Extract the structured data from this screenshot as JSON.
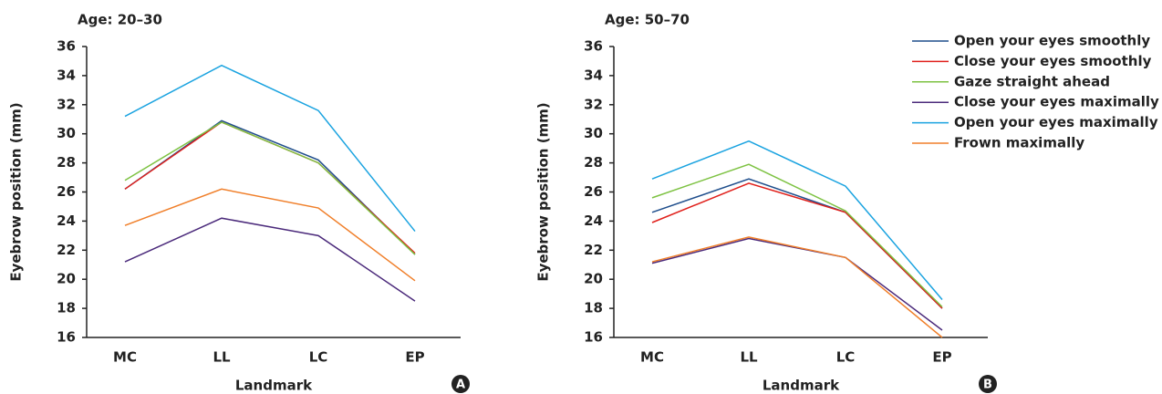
{
  "chart_data": [
    {
      "type": "line",
      "title": "Age: 20–30",
      "x_label": "Landmark",
      "y_label": "Eyebrow position (mm)",
      "panel_label": "A",
      "categories": [
        "MC",
        "LL",
        "LC",
        "EP"
      ],
      "ylim": [
        16,
        36
      ],
      "yticks": [
        16,
        18,
        20,
        22,
        24,
        26,
        28,
        30,
        32,
        34,
        36
      ],
      "series": [
        {
          "color": "#1f4e8c",
          "values": [
            26.2,
            30.9,
            28.2,
            21.7
          ]
        },
        {
          "color": "#e0201b",
          "values": [
            26.2,
            30.8,
            28.0,
            21.8
          ]
        },
        {
          "color": "#7dc242",
          "values": [
            26.8,
            30.8,
            28.0,
            21.7
          ]
        },
        {
          "color": "#4b2a7b",
          "values": [
            21.2,
            24.2,
            23.0,
            18.5
          ]
        },
        {
          "color": "#1aa3e0",
          "values": [
            31.2,
            34.7,
            31.6,
            23.3
          ]
        },
        {
          "color": "#f07f2a",
          "values": [
            23.7,
            26.2,
            24.9,
            19.9
          ]
        }
      ]
    },
    {
      "type": "line",
      "title": "Age: 50–70",
      "x_label": "Landmark",
      "y_label": "Eyebrow position (mm)",
      "panel_label": "B",
      "categories": [
        "MC",
        "LL",
        "LC",
        "EP"
      ],
      "ylim": [
        16,
        36
      ],
      "yticks": [
        16,
        18,
        20,
        22,
        24,
        26,
        28,
        30,
        32,
        34,
        36
      ],
      "series": [
        {
          "name": "Open your eyes smoothly",
          "color": "#1f4e8c",
          "values": [
            24.6,
            26.9,
            24.6,
            18.0
          ]
        },
        {
          "name": "Close your eyes smoothly",
          "color": "#e0201b",
          "values": [
            23.9,
            26.6,
            24.6,
            18.0
          ]
        },
        {
          "name": "Gaze straight ahead",
          "color": "#7dc242",
          "values": [
            25.6,
            27.9,
            24.7,
            18.1
          ]
        },
        {
          "name": "Close your eyes maximally",
          "color": "#4b2a7b",
          "values": [
            21.1,
            22.8,
            21.5,
            16.5
          ]
        },
        {
          "name": "Open your eyes maximally",
          "color": "#1aa3e0",
          "values": [
            26.9,
            29.5,
            26.4,
            18.6
          ]
        },
        {
          "name": "Frown maximally",
          "color": "#f07f2a",
          "values": [
            21.2,
            22.9,
            21.5,
            16.0
          ]
        }
      ]
    }
  ]
}
